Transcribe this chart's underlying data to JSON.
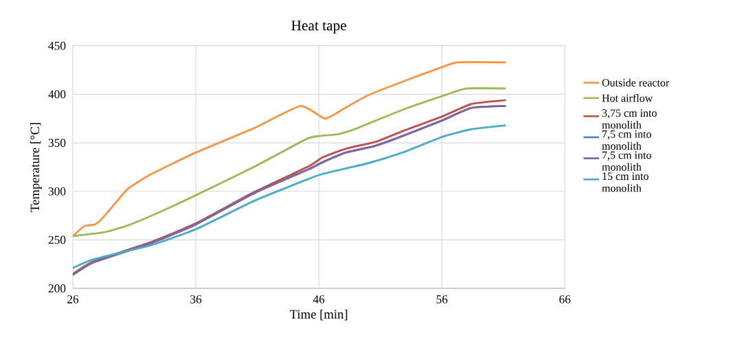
{
  "chart_data": {
    "type": "line",
    "title": "Heat tape",
    "xlabel": "Time [min]",
    "ylabel": "Temperature [°C]",
    "xlim": [
      26,
      66
    ],
    "ylim": [
      200,
      450
    ],
    "xticks": [
      26,
      36,
      46,
      56,
      66
    ],
    "yticks": [
      200,
      250,
      300,
      350,
      400,
      450
    ],
    "grid": true,
    "legend": "right",
    "marker": "none",
    "line_style": "solid",
    "series": [
      {
        "name": "Outside reactor",
        "color": "#f79646",
        "x": [
          26,
          26.9,
          27.3,
          27.8,
          28.3,
          29.4,
          30.5,
          32.4,
          36,
          40.7,
          44.5,
          46.5,
          48,
          50,
          52.8,
          56,
          57.3,
          61.2
        ],
        "values": [
          254,
          264,
          265,
          266,
          271,
          287,
          303,
          318,
          340,
          365,
          388,
          375,
          385,
          399,
          413,
          428,
          433,
          433
        ]
      },
      {
        "name": "Hot airflow",
        "color": "#9bbb59",
        "x": [
          26,
          28.6,
          30.5,
          33.3,
          36,
          40.7,
          45,
          46,
          47.6,
          49.1,
          52.8,
          56,
          58,
          61.2
        ],
        "values": [
          254,
          258,
          265,
          280,
          296,
          325,
          354,
          357,
          359,
          365,
          384,
          398,
          406,
          406
        ]
      },
      {
        "name": "3,75 cm into monolith",
        "color": "#c0504d",
        "x": [
          26,
          27.7,
          32.2,
          36,
          40.7,
          45.2,
          46.3,
          48.2,
          50.6,
          52.8,
          56,
          58.4,
          61.2
        ],
        "values": [
          215,
          228,
          247,
          267,
          299,
          326,
          335,
          344,
          351,
          362,
          377,
          390,
          394
        ]
      },
      {
        "name": "7,5 cm into monolith",
        "color": "#4f81bd",
        "x": [
          26,
          27.7,
          32.2,
          36,
          40.7,
          45.2,
          46.3,
          48.2,
          50.6,
          52.8,
          56,
          58.4,
          61.2
        ],
        "values": [
          214,
          227,
          246,
          266,
          298,
          323,
          330,
          340,
          347,
          357,
          373,
          386,
          388
        ]
      },
      {
        "name": "7,5 cm into monolith",
        "color": "#8064a2",
        "x": [
          26,
          27.7,
          32.2,
          36,
          40.7,
          45.2,
          46.3,
          48.2,
          50.6,
          52.8,
          56,
          58.4,
          61.2
        ],
        "values": [
          214,
          227,
          246,
          266,
          298,
          323,
          330,
          340,
          347,
          357,
          373,
          386,
          388
        ]
      },
      {
        "name": "15 cm into monolith",
        "color": "#4bacc6",
        "x": [
          26,
          27.7,
          32.2,
          36,
          40.7,
          45.2,
          46.3,
          50,
          52.8,
          56,
          58.4,
          61.2
        ],
        "values": [
          221,
          230,
          244,
          261,
          290,
          313,
          318,
          329,
          340,
          356,
          364,
          368
        ]
      }
    ]
  }
}
